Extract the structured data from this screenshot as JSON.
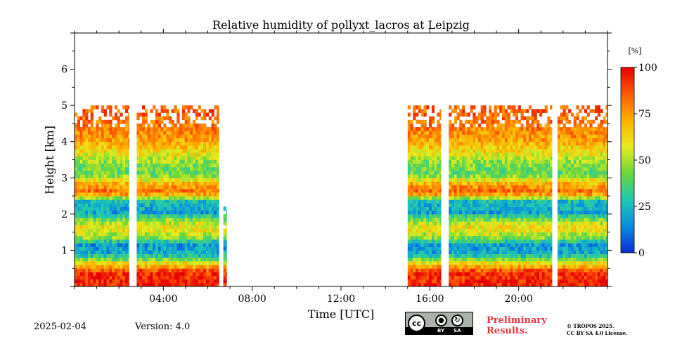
{
  "chart_data": {
    "type": "heatmap",
    "title": "Relative humidity of pollyxt_lacros at Leipzig",
    "xlabel": "Time [UTC]",
    "ylabel": "Height [km]",
    "xlim": [
      0,
      24
    ],
    "ylim": [
      0,
      7
    ],
    "x_ticks": [
      {
        "value": 4,
        "label": "04:00"
      },
      {
        "value": 8,
        "label": "08:00"
      },
      {
        "value": 12,
        "label": "12:00"
      },
      {
        "value": 16,
        "label": "16:00"
      },
      {
        "value": 20,
        "label": "20:00"
      }
    ],
    "y_ticks": [
      {
        "value": 1,
        "label": "1"
      },
      {
        "value": 2,
        "label": "2"
      },
      {
        "value": 3,
        "label": "3"
      },
      {
        "value": 4,
        "label": "4"
      },
      {
        "value": 5,
        "label": "5"
      },
      {
        "value": 6,
        "label": "6"
      }
    ],
    "colorbar": {
      "label": "[%]",
      "range": [
        0,
        100
      ],
      "ticks": [
        {
          "value": 0,
          "label": "0"
        },
        {
          "value": 25,
          "label": "25"
        },
        {
          "value": 50,
          "label": "50"
        },
        {
          "value": 75,
          "label": "75"
        },
        {
          "value": 100,
          "label": "100"
        }
      ],
      "colormap": [
        "#0a2bd8",
        "#0a8de0",
        "#1ec8b4",
        "#6bd83a",
        "#e6ec1e",
        "#ffb000",
        "#ff5a00",
        "#e80000"
      ]
    },
    "data_segments": [
      {
        "start": 0.0,
        "end": 2.45
      },
      {
        "start": 2.8,
        "end": 6.5
      },
      {
        "start": 6.7,
        "end": 6.85
      },
      {
        "start": 15.0,
        "end": 16.5
      },
      {
        "start": 16.85,
        "end": 21.5
      },
      {
        "start": 21.75,
        "end": 24.0
      }
    ],
    "humidity_profile": [
      {
        "height": 0.1,
        "rh": 95
      },
      {
        "height": 0.4,
        "rh": 93
      },
      {
        "height": 0.65,
        "rh": 60
      },
      {
        "height": 0.9,
        "rh": 22
      },
      {
        "height": 1.15,
        "rh": 18
      },
      {
        "height": 1.35,
        "rh": 45
      },
      {
        "height": 1.6,
        "rh": 62
      },
      {
        "height": 1.8,
        "rh": 50
      },
      {
        "height": 2.05,
        "rh": 20
      },
      {
        "height": 2.35,
        "rh": 25
      },
      {
        "height": 2.6,
        "rh": 85
      },
      {
        "height": 2.85,
        "rh": 70
      },
      {
        "height": 3.1,
        "rh": 40
      },
      {
        "height": 3.4,
        "rh": 45
      },
      {
        "height": 3.7,
        "rh": 60
      },
      {
        "height": 4.0,
        "rh": 72
      },
      {
        "height": 4.4,
        "rh": 80
      },
      {
        "height": 4.8,
        "rh": 85
      }
    ],
    "grid": false
  },
  "footer": {
    "date": "2025-02-04",
    "version": "Version: 4.0",
    "preliminary": [
      "Preliminary",
      "Results."
    ],
    "copyright": [
      "© TROPOS 2025.",
      "CC BY SA 4.0 License."
    ],
    "license_badge": {
      "cc": "cc",
      "by": "BY",
      "sa": "SA"
    }
  },
  "icons": {
    "license": "cc-by-sa-icon"
  }
}
